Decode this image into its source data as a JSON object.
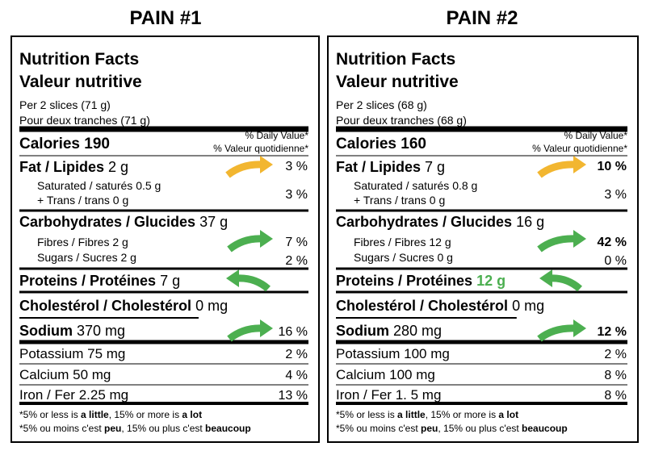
{
  "panels": [
    {
      "heading": "PAIN #1",
      "title_en": "Nutrition Facts",
      "title_fr": "Valeur nutritive",
      "serving_en": "Per 2 slices (71 g)",
      "serving_fr": "Pour deux tranches (71 g)",
      "dv_en": "% Daily Value*",
      "dv_fr": "% Valeur quotidienne*",
      "calories": "Calories 190",
      "rows": [
        {
          "name": "Fat / Lipides",
          "amount": "2 g",
          "dv": "3 %"
        },
        {
          "name": "Saturated / saturés",
          "amount": "0.5 g",
          "trans_name": "+ Trans / trans",
          "trans_amount": "0 g",
          "dv": "3 %"
        },
        {
          "name": "Carbohydrates / Glucides",
          "amount": "37 g"
        },
        {
          "name": "Fibres / Fibres",
          "amount": "2 g",
          "dv": "7 %"
        },
        {
          "name": "Sugars / Sucres",
          "amount": "2 g",
          "dv": "2 %"
        },
        {
          "name": "Proteins / Protéines",
          "amount": "7 g"
        },
        {
          "name": "Cholestérol / Cholestérol",
          "amount": "0 mg"
        },
        {
          "name": "Sodium",
          "amount": "370 mg",
          "dv": "16 %"
        },
        {
          "name": "Potassium",
          "amount": "75 mg",
          "dv": "2 %"
        },
        {
          "name": "Calcium",
          "amount": "50 mg",
          "dv": "4 %"
        },
        {
          "name": "Iron / Fer",
          "amount": "2.25 mg",
          "dv": "13 %"
        }
      ],
      "footnote_en": [
        "*5% or less is ",
        "a little",
        ", 15% or more is ",
        "a lot"
      ],
      "footnote_fr": [
        "*5% ou moins c'est ",
        "peu",
        ", 15% ou plus c'est ",
        "beaucoup"
      ]
    },
    {
      "heading": "PAIN #2",
      "title_en": "Nutrition Facts",
      "title_fr": "Valeur nutritive",
      "serving_en": "Per 2 slices (68 g)",
      "serving_fr": "Pour deux tranches (68 g)",
      "dv_en": "% Daily Value*",
      "dv_fr": "% Valeur quotidienne*",
      "calories": "Calories 160",
      "rows": [
        {
          "name": "Fat / Lipides",
          "amount": "7 g",
          "dv": "10 %",
          "dv_color": "#f2b630"
        },
        {
          "name": "Saturated / saturés",
          "amount": "0.8 g",
          "trans_name": "+ Trans / trans",
          "trans_amount": "0 g",
          "dv": "3 %"
        },
        {
          "name": "Carbohydrates / Glucides",
          "amount": "16 g"
        },
        {
          "name": "Fibres / Fibres",
          "amount": "12 g",
          "dv": "42 %",
          "dv_color": "#4caf50"
        },
        {
          "name": "Sugars / Sucres",
          "amount": "0 g",
          "dv": "0 %"
        },
        {
          "name": "Proteins / Protéines",
          "amount": "12 g",
          "amount_color": "#4caf50"
        },
        {
          "name": "Cholestérol / Cholestérol",
          "amount": "0 mg"
        },
        {
          "name": "Sodium",
          "amount": "280 mg",
          "dv": "12 %",
          "dv_color": "#4caf50"
        },
        {
          "name": "Potassium",
          "amount": "100 mg",
          "dv": "2 %"
        },
        {
          "name": "Calcium",
          "amount": "100 mg",
          "dv": "8 %"
        },
        {
          "name": "Iron / Fer",
          "amount": "1. 5 mg",
          "dv": "8 %"
        }
      ],
      "footnote_en": [
        "*5% or less is ",
        "a little",
        ", 15% or more is ",
        "a lot"
      ],
      "footnote_fr": [
        "*5% ou moins c'est ",
        "peu",
        ", 15% ou plus c'est ",
        "beaucoup"
      ]
    }
  ]
}
